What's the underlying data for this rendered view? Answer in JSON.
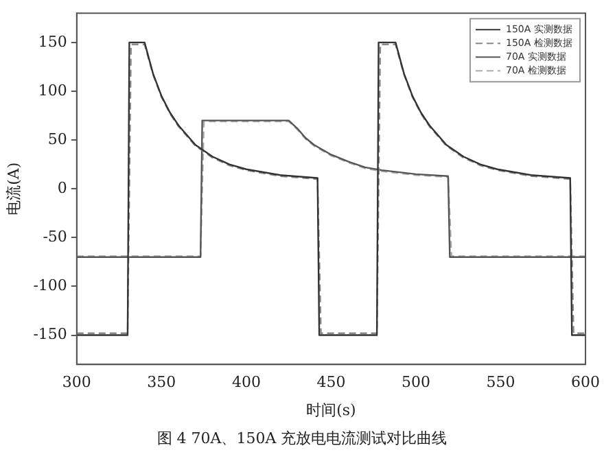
{
  "chart_data": {
    "type": "line",
    "xlabel": "时间(s)",
    "ylabel": "电流(A)",
    "xlim": [
      300,
      600
    ],
    "xticks": [
      300,
      350,
      400,
      450,
      500,
      550,
      600
    ],
    "ylim": [
      -180,
      180
    ],
    "yticks": [
      -150,
      -100,
      -50,
      0,
      50,
      100,
      150
    ],
    "grid": false,
    "legend": "top right",
    "marker": "none",
    "annotations": [
      "图 4  70A、150A 充放电电流测试对比曲线"
    ],
    "series": [
      {
        "name": "150A 实测数据",
        "color": "#333333",
        "line_style": "solid",
        "x": [
          300,
          330,
          331,
          340,
          345,
          350,
          355,
          360,
          370,
          380,
          390,
          400,
          420,
          442,
          443,
          477,
          478,
          488,
          493,
          498,
          503,
          508,
          518,
          528,
          538,
          548,
          568,
          591,
          592,
          600
        ],
        "values": [
          -150,
          -150,
          150,
          150,
          118,
          95,
          78,
          65,
          45,
          33,
          25,
          20,
          14,
          11,
          -150,
          -150,
          150,
          150,
          118,
          95,
          78,
          65,
          45,
          33,
          25,
          20,
          14,
          11,
          -150,
          -150
        ]
      },
      {
        "name": "150A 检测数据",
        "color": "#888888",
        "line_style": "dashed",
        "x": [
          300,
          330,
          332,
          340,
          345,
          350,
          355,
          360,
          370,
          380,
          390,
          400,
          420,
          442,
          444,
          477,
          479,
          488,
          493,
          498,
          503,
          508,
          518,
          528,
          538,
          548,
          568,
          591,
          593,
          600
        ],
        "values": [
          -148,
          -148,
          148,
          148,
          117,
          94,
          77,
          64,
          44,
          32,
          24,
          19,
          13,
          10,
          -148,
          -148,
          148,
          148,
          117,
          94,
          77,
          64,
          44,
          32,
          24,
          19,
          13,
          10,
          -148,
          -148
        ]
      },
      {
        "name": "70A 实测数据",
        "color": "#555555",
        "line_style": "solid",
        "x": [
          300,
          373,
          374,
          425,
          430,
          435,
          440,
          450,
          460,
          470,
          480,
          500,
          519,
          520,
          600
        ],
        "values": [
          -70,
          -70,
          70,
          70,
          62,
          52,
          45,
          35,
          28,
          22,
          19,
          15,
          13,
          -70,
          -70
        ]
      },
      {
        "name": "70A 检测数据",
        "color": "#aaaaaa",
        "line_style": "dashed",
        "x": [
          300,
          373,
          375,
          425,
          430,
          435,
          440,
          450,
          460,
          470,
          480,
          500,
          519,
          521,
          600
        ],
        "values": [
          -69,
          -69,
          69,
          69,
          61,
          51,
          44,
          34,
          27,
          21,
          18,
          14,
          12,
          -69,
          -69
        ]
      }
    ]
  }
}
